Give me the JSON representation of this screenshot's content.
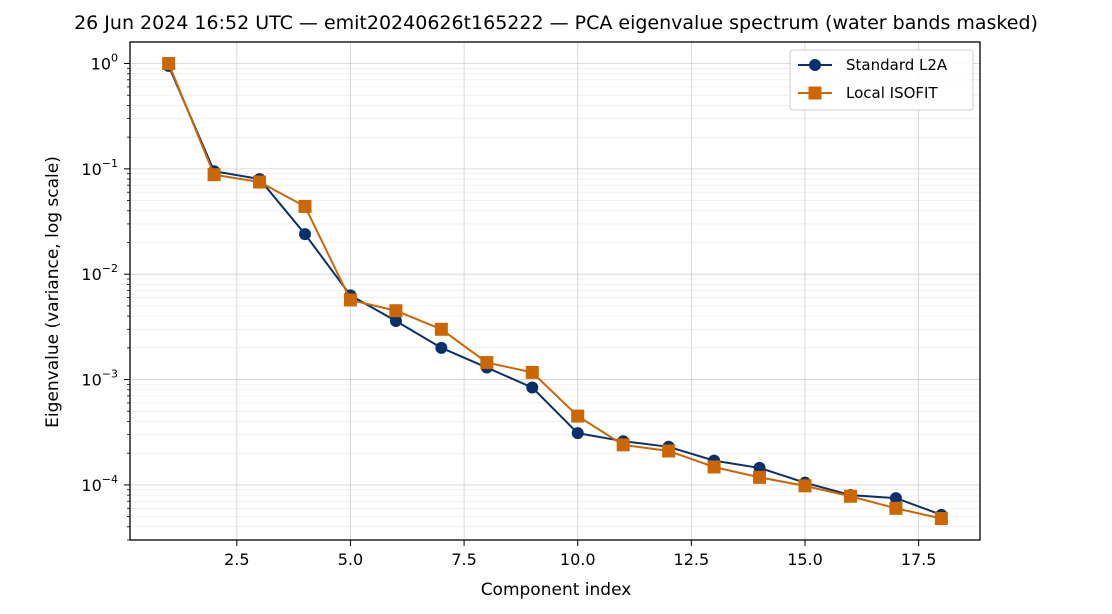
{
  "chart_data": {
    "type": "line",
    "title": "26 Jun 2024 16:52 UTC — emit20240626t165222 — PCA eigenvalue spectrum (water bands masked)",
    "xlabel": "Component index",
    "ylabel": "Eigenvalue (variance, log scale)",
    "yscale": "log",
    "xlim": [
      0.15,
      18.85
    ],
    "ylim": [
      3e-05,
      1.6
    ],
    "xticks": [
      "2.5",
      "5.0",
      "7.5",
      "10.0",
      "12.5",
      "15.0",
      "17.5"
    ],
    "yticks": [
      {
        "base": "10",
        "exp": "−4",
        "value": 0.0001
      },
      {
        "base": "10",
        "exp": "−3",
        "value": 0.001
      },
      {
        "base": "10",
        "exp": "−2",
        "value": 0.01
      },
      {
        "base": "10",
        "exp": "−1",
        "value": 0.1
      },
      {
        "base": "10",
        "exp": "0",
        "value": 1
      }
    ],
    "grid": true,
    "legend_position": "top-right",
    "x": [
      1,
      2,
      3,
      4,
      5,
      6,
      7,
      8,
      9,
      10,
      11,
      12,
      13,
      14,
      15,
      16,
      17,
      18
    ],
    "series": [
      {
        "name": "Standard L2A",
        "color": "#08306b",
        "marker": "circle",
        "values": [
          0.95,
          0.095,
          0.08,
          0.024,
          0.0063,
          0.0036,
          0.002,
          0.0013,
          0.00084,
          0.00031,
          0.00026,
          0.00023,
          0.00017,
          0.000145,
          0.000105,
          8e-05,
          7.5e-05,
          5.2e-05
        ]
      },
      {
        "name": "Local ISOFIT",
        "color": "#cc6600",
        "marker": "square",
        "values": [
          1.0,
          0.088,
          0.075,
          0.044,
          0.0057,
          0.0045,
          0.003,
          0.00145,
          0.00117,
          0.00045,
          0.00024,
          0.00021,
          0.000148,
          0.000118,
          9.8e-05,
          7.8e-05,
          6e-05,
          4.8e-05
        ]
      }
    ]
  }
}
